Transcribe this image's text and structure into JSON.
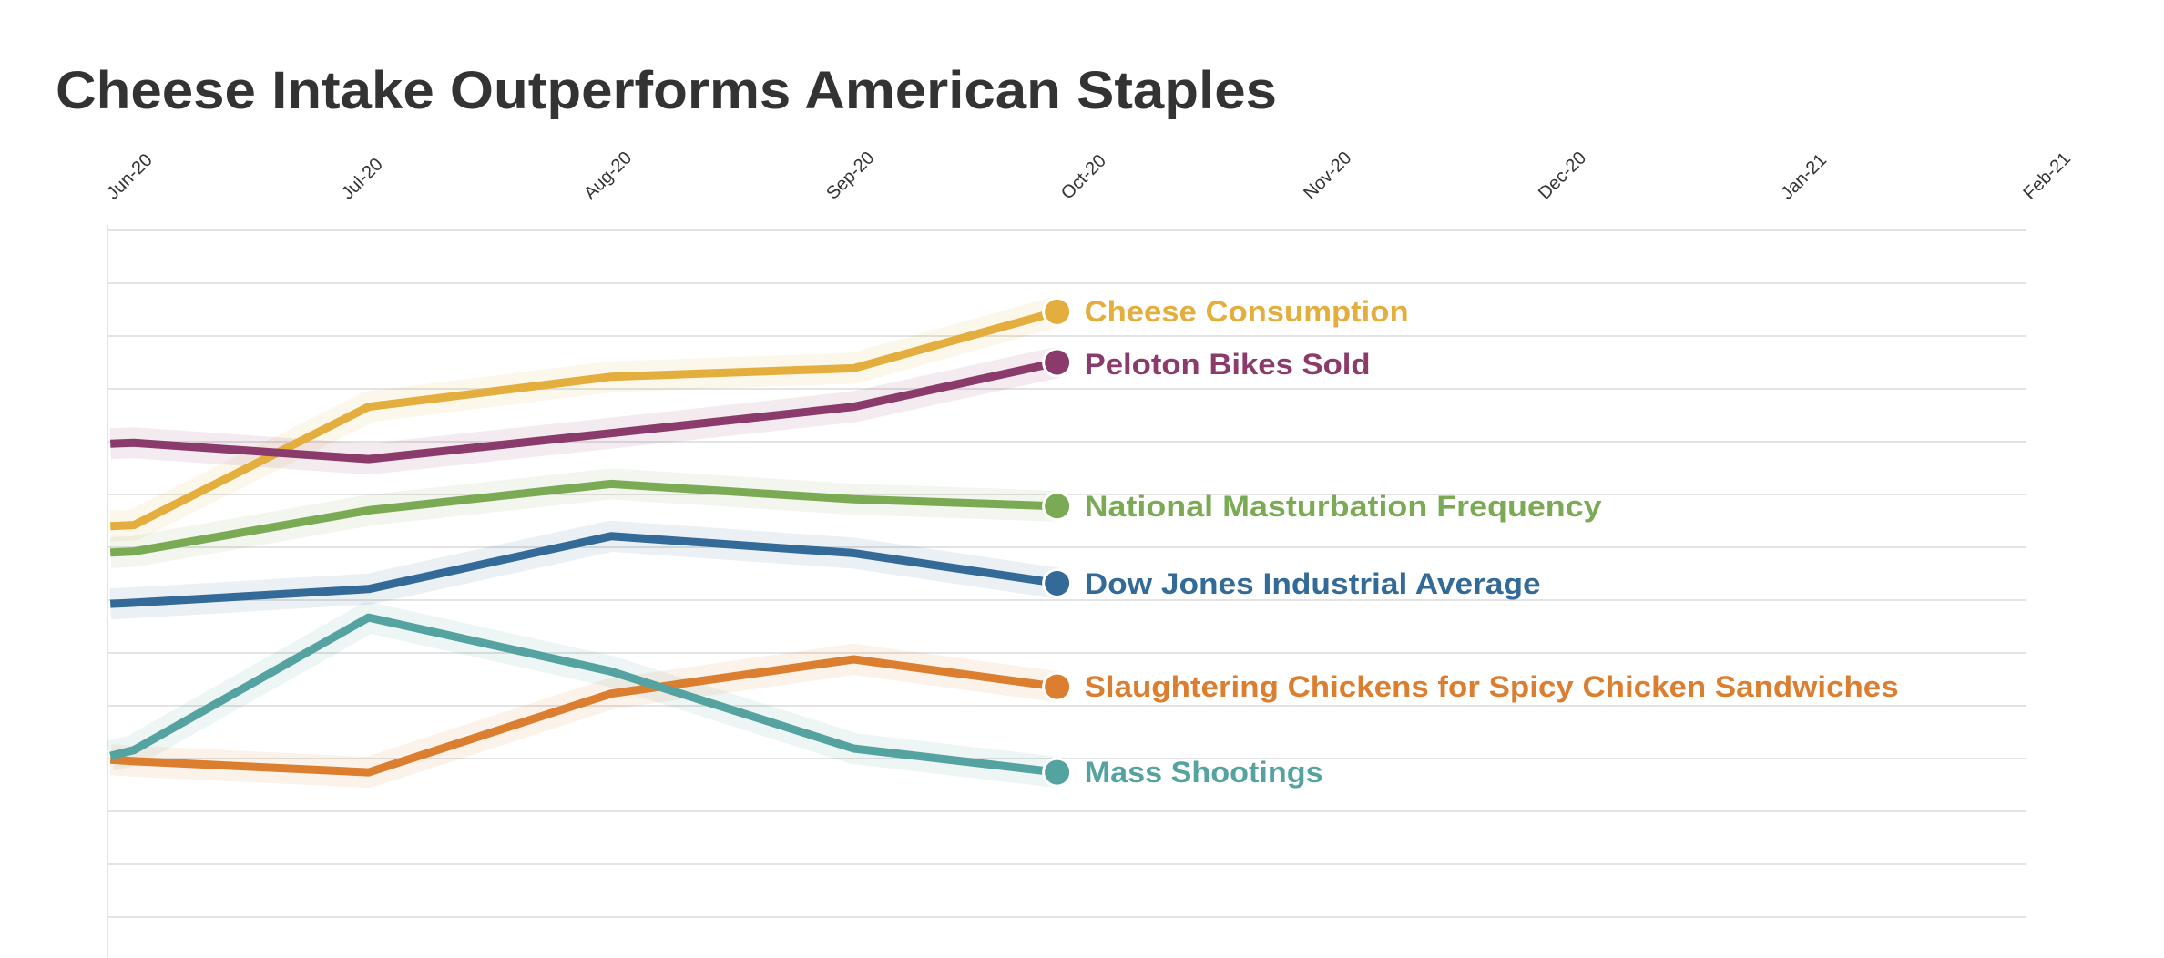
{
  "chart_data": {
    "type": "line",
    "title": "Cheese Intake Outperforms American Staples",
    "xlabel": "",
    "ylabel": "",
    "x_tick_labels": [
      "Jun-20",
      "Jul-20",
      "Aug-20",
      "Sep-20",
      "Oct-20",
      "Nov-20",
      "Dec-20",
      "Jan-21",
      "Feb-21"
    ],
    "x_ticks": [
      "2020-06-01",
      "2020-07-01",
      "2020-08-01",
      "2020-09-01",
      "2020-10-01",
      "2020-11-01",
      "2020-12-01",
      "2021-01-01",
      "2021-02-01"
    ],
    "xlim": [
      "2020-05-29",
      "2021-01-28"
    ],
    "ylim": [
      0,
      13
    ],
    "y_axis_labels": "none",
    "grid": true,
    "legend": "direct labels at line ends",
    "x": [
      "2020-05-29",
      "2020-06-01",
      "2020-07-01",
      "2020-08-01",
      "2020-09-01",
      "2020-09-27"
    ],
    "series": [
      {
        "name": "Cheese Consumption",
        "color": "#E3AE3E",
        "values": [
          7.4,
          7.42,
          9.66,
          10.23,
          10.39,
          11.46
        ]
      },
      {
        "name": "Peloton Bikes Sold",
        "color": "#8A3B6B",
        "values": [
          8.96,
          8.98,
          8.67,
          9.16,
          9.66,
          10.5
        ]
      },
      {
        "name": "National Masturbation Frequency",
        "color": "#7BAA55",
        "values": [
          6.9,
          6.92,
          7.7,
          8.2,
          7.91,
          7.78
        ]
      },
      {
        "name": "Dow Jones Industrial Average",
        "color": "#336A97",
        "values": [
          5.93,
          5.95,
          6.21,
          7.21,
          6.89,
          6.32
        ]
      },
      {
        "name": "Slaughtering Chickens for Spicy Chicken Sandwiches",
        "color": "#DB7E2F",
        "values": [
          2.98,
          2.95,
          2.74,
          4.23,
          4.88,
          4.36
        ]
      },
      {
        "name": "Mass Shootings",
        "color": "#55A3A0",
        "values": [
          3.05,
          3.16,
          5.67,
          4.65,
          3.19,
          2.74
        ]
      }
    ]
  }
}
